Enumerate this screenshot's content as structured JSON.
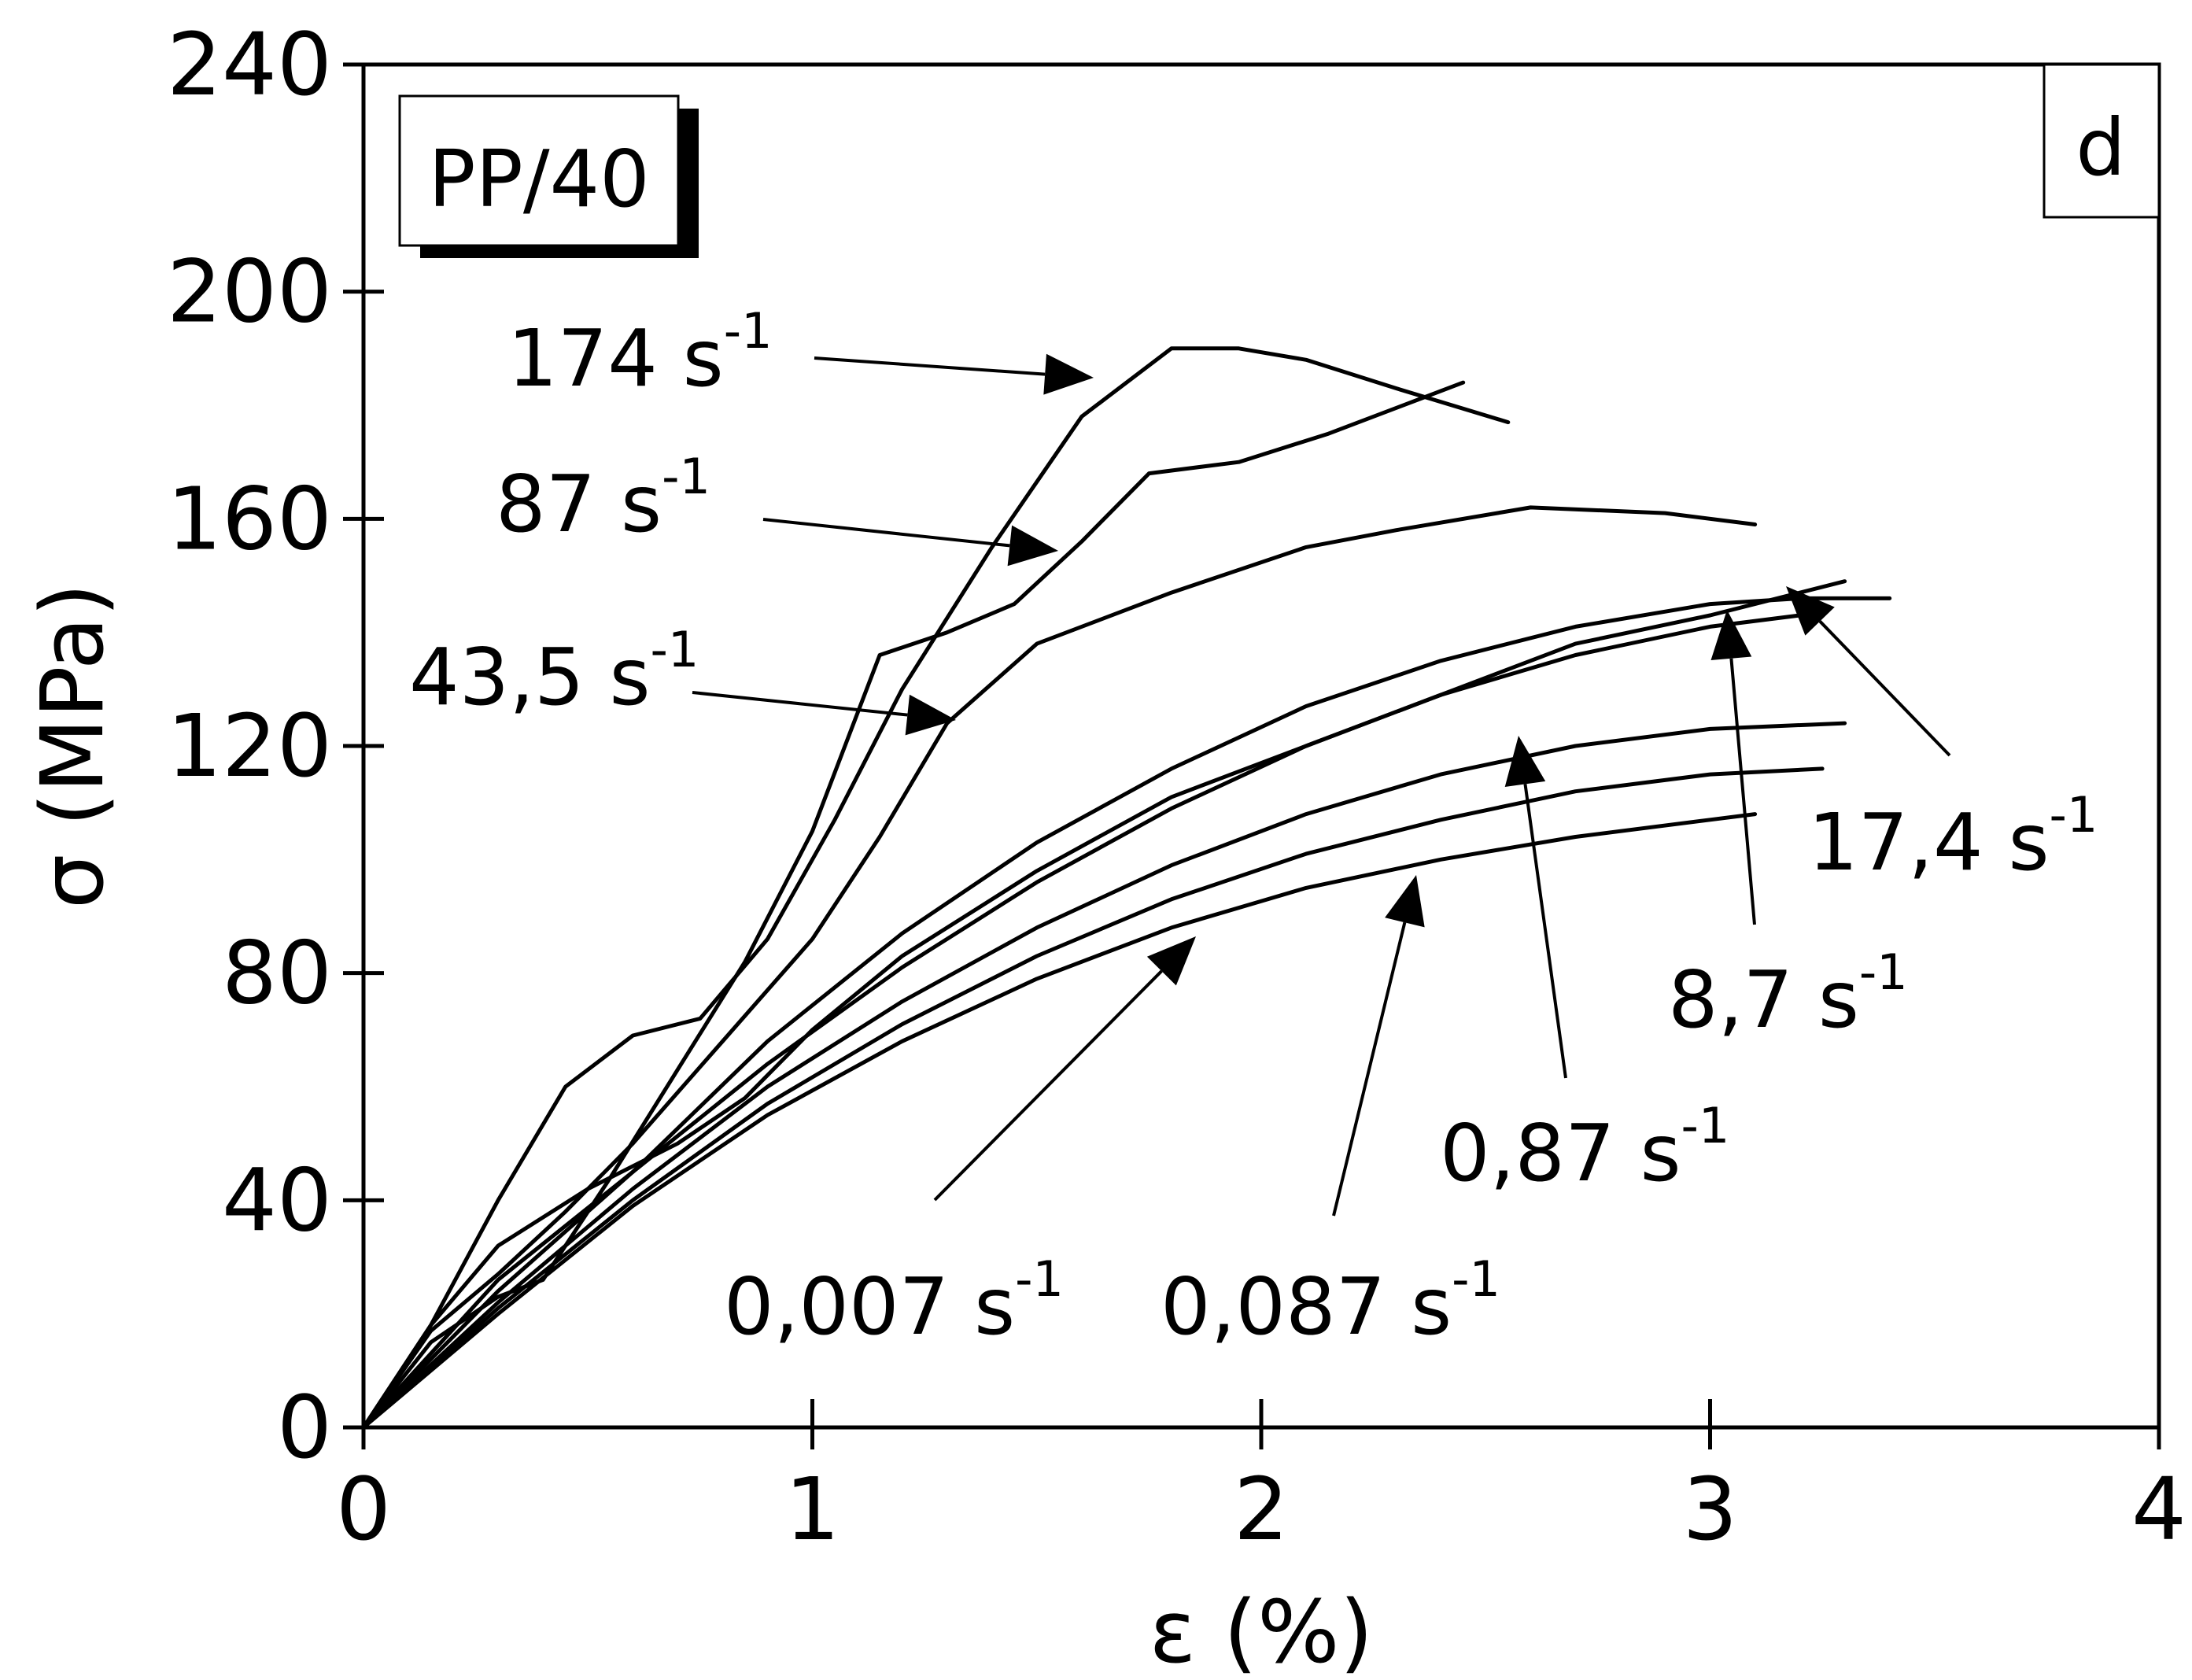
{
  "chart_data": {
    "type": "line",
    "panel_label": "d",
    "sample_label": "PP/40",
    "xlabel": "ε (%)",
    "ylabel": "σ (MPa)",
    "xlim": [
      0,
      4
    ],
    "ylim": [
      0,
      240
    ],
    "xticks": [
      0,
      1,
      2,
      3,
      4
    ],
    "yticks": [
      0,
      40,
      80,
      120,
      160,
      200,
      240
    ],
    "grid": false,
    "series": [
      {
        "name": "0,007 s-1",
        "rate": "0,007",
        "unit": "s",
        "exp": "-1",
        "points": [
          [
            0,
            0
          ],
          [
            0.3,
            20
          ],
          [
            0.6,
            39
          ],
          [
            0.9,
            55
          ],
          [
            1.2,
            68
          ],
          [
            1.5,
            79
          ],
          [
            1.8,
            88
          ],
          [
            2.1,
            95
          ],
          [
            2.4,
            100
          ],
          [
            2.7,
            104
          ],
          [
            3.0,
            107
          ],
          [
            3.1,
            108
          ]
        ]
      },
      {
        "name": "0,087 s-1",
        "rate": "0,087",
        "unit": "s",
        "exp": "-1",
        "points": [
          [
            0,
            0
          ],
          [
            0.3,
            21
          ],
          [
            0.6,
            40
          ],
          [
            0.9,
            57
          ],
          [
            1.2,
            71
          ],
          [
            1.5,
            83
          ],
          [
            1.8,
            93
          ],
          [
            2.1,
            101
          ],
          [
            2.4,
            107
          ],
          [
            2.7,
            112
          ],
          [
            3.0,
            115
          ],
          [
            3.25,
            116
          ]
        ]
      },
      {
        "name": "0,87 s-1",
        "rate": "0,87",
        "unit": "s",
        "exp": "-1",
        "points": [
          [
            0,
            0
          ],
          [
            0.3,
            22
          ],
          [
            0.6,
            42
          ],
          [
            0.9,
            60
          ],
          [
            1.2,
            75
          ],
          [
            1.5,
            88
          ],
          [
            1.8,
            99
          ],
          [
            2.1,
            108
          ],
          [
            2.4,
            115
          ],
          [
            2.7,
            120
          ],
          [
            3.0,
            123
          ],
          [
            3.3,
            124
          ]
        ]
      },
      {
        "name": "8,7 s-1",
        "rate": "8,7",
        "unit": "s",
        "exp": "-1",
        "points": [
          [
            0,
            0
          ],
          [
            0.3,
            24
          ],
          [
            0.6,
            45
          ],
          [
            0.9,
            64
          ],
          [
            1.2,
            81
          ],
          [
            1.5,
            96
          ],
          [
            1.8,
            109
          ],
          [
            2.1,
            120
          ],
          [
            2.4,
            129
          ],
          [
            2.7,
            136
          ],
          [
            3.0,
            141
          ],
          [
            3.2,
            143
          ]
        ]
      },
      {
        "name": "17,4 s-1",
        "rate": "17,4",
        "unit": "s",
        "exp": "-1",
        "points": [
          [
            0,
            0
          ],
          [
            0.3,
            26
          ],
          [
            0.6,
            45
          ],
          [
            0.9,
            68
          ],
          [
            1.2,
            87
          ],
          [
            1.5,
            103
          ],
          [
            1.8,
            116
          ],
          [
            2.1,
            127
          ],
          [
            2.4,
            135
          ],
          [
            2.7,
            141
          ],
          [
            3.0,
            145
          ],
          [
            3.2,
            146
          ],
          [
            3.4,
            146
          ]
        ]
      },
      {
        "name": "43,5 s-1",
        "rate": "43,5",
        "unit": "s",
        "exp": "-1",
        "points": [
          [
            0,
            0
          ],
          [
            0.15,
            18
          ],
          [
            0.3,
            32
          ],
          [
            0.5,
            42
          ],
          [
            0.7,
            50
          ],
          [
            0.85,
            58
          ],
          [
            1.0,
            70
          ],
          [
            1.2,
            83
          ],
          [
            1.5,
            98
          ],
          [
            1.8,
            111
          ],
          [
            2.1,
            120
          ],
          [
            2.4,
            129
          ],
          [
            2.7,
            138
          ],
          [
            3.0,
            143
          ],
          [
            3.3,
            149
          ]
        ]
      },
      {
        "name": "87 s-1",
        "rate": "87",
        "unit": "s",
        "exp": "-1",
        "points": [
          [
            0,
            0
          ],
          [
            0.15,
            17
          ],
          [
            0.3,
            27
          ],
          [
            0.45,
            38
          ],
          [
            0.6,
            50
          ],
          [
            0.8,
            68
          ],
          [
            1.0,
            86
          ],
          [
            1.15,
            104
          ],
          [
            1.3,
            124
          ],
          [
            1.5,
            138
          ],
          [
            1.8,
            147
          ],
          [
            2.1,
            155
          ],
          [
            2.3,
            158
          ],
          [
            2.6,
            162
          ],
          [
            2.9,
            161
          ],
          [
            3.1,
            159
          ]
        ]
      },
      {
        "name": "174 s-1",
        "rate": "174",
        "unit": "s",
        "exp": "-1",
        "points": [
          [
            0,
            0
          ],
          [
            0.15,
            15
          ],
          [
            0.3,
            23
          ],
          [
            0.4,
            26
          ],
          [
            0.55,
            44
          ],
          [
            0.7,
            63
          ],
          [
            0.85,
            82
          ],
          [
            1.0,
            105
          ],
          [
            1.15,
            136
          ],
          [
            1.3,
            140
          ],
          [
            1.45,
            145
          ],
          [
            1.6,
            156
          ],
          [
            1.75,
            168
          ],
          [
            1.95,
            170
          ],
          [
            2.15,
            175
          ],
          [
            2.45,
            184
          ]
        ]
      },
      {
        "name": "",
        "rate": "",
        "unit": "",
        "exp": "",
        "points": [
          [
            0,
            0
          ],
          [
            0.15,
            18
          ],
          [
            0.3,
            40
          ],
          [
            0.45,
            60
          ],
          [
            0.6,
            69
          ],
          [
            0.75,
            72
          ],
          [
            0.9,
            86
          ],
          [
            1.05,
            107
          ],
          [
            1.2,
            130
          ],
          [
            1.4,
            155
          ],
          [
            1.6,
            178
          ],
          [
            1.8,
            190
          ],
          [
            1.95,
            190
          ],
          [
            2.1,
            188
          ],
          [
            2.3,
            183
          ],
          [
            2.55,
            177
          ]
        ]
      }
    ]
  }
}
